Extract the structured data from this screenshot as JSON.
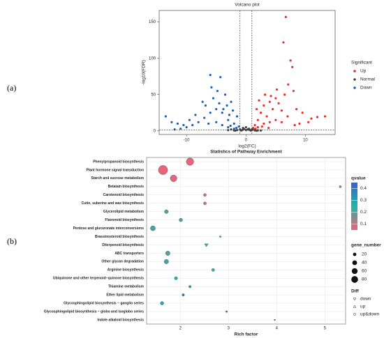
{
  "panel_labels": [
    "(a)",
    "(b)"
  ],
  "chart_data": [
    {
      "type": "scatter",
      "title": "Volcano plot",
      "x_label": "log2(FC)",
      "y_label": "-log10(FDR)",
      "xlim": [
        -14.6,
        15
      ],
      "ylim": [
        -5,
        166
      ],
      "xticks": [
        -10,
        0,
        10
      ],
      "yticks": [
        0,
        50,
        100,
        150
      ],
      "vlines": [
        -1,
        1
      ],
      "hline": 1.3,
      "legend_title": "Significant",
      "grid": false,
      "series": [
        {
          "name": "Up",
          "color": "#e8302a",
          "x": [
            6.7,
            6.3,
            7.5,
            7.8,
            7.1,
            8,
            12,
            10.5,
            9,
            8.2,
            5,
            4,
            3,
            2.5,
            2,
            1.5,
            1.2,
            3.5,
            4.5,
            5.5,
            6,
            7,
            2,
            3,
            4,
            5,
            6,
            1.8,
            2.2,
            3.2,
            4.2,
            5.2,
            6.5,
            11,
            13.3,
            9.5,
            8.5,
            1.4,
            2.7,
            3.8,
            1.1,
            1.6
          ],
          "values": [
            157,
            122,
            97,
            88,
            64,
            55,
            19,
            12,
            10,
            8,
            45,
            40,
            35,
            25,
            15,
            8,
            4,
            20,
            30,
            38,
            28,
            20,
            5,
            10,
            12,
            15,
            12,
            30,
            42,
            50,
            48,
            57,
            50,
            17,
            20,
            25,
            30,
            2,
            6,
            4,
            1.5,
            3
          ]
        },
        {
          "name": "Normal",
          "color": "#444444",
          "x": [
            -3,
            -2.5,
            -2,
            -1.5,
            -1,
            -0.5,
            0,
            0.5,
            1,
            1.5,
            2,
            2.5,
            0,
            -0.8,
            0.8,
            -0.3,
            0.3,
            -1.8,
            1.8,
            -0.6,
            0.6
          ],
          "values": [
            1,
            2,
            0.8,
            1,
            2,
            4,
            1,
            3,
            2,
            0.6,
            0.8,
            0.5,
            5,
            0.5,
            0.5,
            2.5,
            2,
            0.4,
            0.3,
            1.2,
            1.5
          ]
        },
        {
          "name": "Down",
          "color": "#1f5fb0",
          "x": [
            -6,
            -5.8,
            -4.3,
            -3.5,
            -2.5,
            -1.5,
            -1.2,
            -2,
            -3,
            -4,
            -5,
            -6,
            -7,
            -8,
            -9,
            -10,
            -11,
            -12,
            -7.3,
            -6.8,
            -5.5,
            -4.5,
            -3.8,
            -2.8,
            -2.2,
            -3.2,
            -4.8,
            -8.5,
            -9.5,
            -13.5,
            -12.5,
            -11.5,
            -10.5,
            -6.3,
            -5,
            -4,
            -3,
            -2,
            -1.6,
            -2.6
          ],
          "values": [
            77,
            60,
            74,
            50,
            40,
            20,
            6,
            10,
            15,
            25,
            30,
            25,
            18,
            12,
            8,
            5,
            3,
            2,
            40,
            35,
            45,
            38,
            30,
            22,
            28,
            35,
            55,
            22,
            15,
            20,
            12,
            10,
            8,
            10,
            12,
            8,
            5,
            3,
            4,
            7
          ]
        }
      ]
    },
    {
      "type": "bubble",
      "title": "Statistics of Pathway Enrichment",
      "x_label": "Rich factor",
      "xlim": [
        1.3,
        5.43
      ],
      "xticks": [
        2,
        3,
        4,
        5
      ],
      "grid": true,
      "categories": [
        "Phenylpropanoid biosynthesis",
        "Plant hormone signal transduction",
        "Starch and sucrose metabolism",
        "Betalain biosynthesis",
        "Carotenoid biosynthesis",
        "Cutin, suberine and wax biosynthesis",
        "Glycerolipid metabolism",
        "Flavonoid biosynthesis",
        "Pentose and glucuronate interconversions",
        "Brassinosteroid biosynthesis",
        "Diterpenoid biosynthesis",
        "ABC transporters",
        "Other glycan degradation",
        "Arginine biosynthesis",
        "Ubiquinone and other terpenoid−quinone biosynthesis",
        "Thiamine metabolism",
        "Ether lipid metabolism",
        "Glycosphingolipid biosynthesis − ganglio series",
        "Glycosphingolipid biosynthesis − globo and isoglobo series",
        "Indole alkaloid biosynthesis"
      ],
      "values": [
        2.2,
        1.64,
        1.86,
        5.32,
        2.51,
        2.51,
        1.71,
        2.01,
        1.43,
        2.83,
        2.54,
        1.74,
        1.71,
        2.68,
        1.91,
        2.2,
        2.06,
        1.62,
        2.96,
        3.96
      ],
      "qvalues": [
        0.06,
        0.06,
        0.07,
        0.1,
        0.1,
        0.1,
        0.2,
        0.2,
        0.21,
        0.2,
        0.22,
        0.2,
        0.21,
        0.22,
        0.25,
        0.3,
        0.38,
        0.27,
        0.42,
        0.42
      ],
      "gene_numbers": [
        55,
        85,
        45,
        5,
        8,
        8,
        15,
        12,
        25,
        3,
        10,
        20,
        20,
        8,
        10,
        6,
        6,
        12,
        3,
        2
      ],
      "diff": [
        "up&down",
        "up&down",
        "up&down",
        "up&down",
        "up&down",
        "up&down",
        "up&down",
        "up&down",
        "up&down",
        "up&down",
        "down",
        "up&down",
        "up&down",
        "up&down",
        "up&down",
        "up&down",
        "up&down",
        "up&down",
        "up&down",
        "up&down"
      ],
      "color_title": "qvalue",
      "color_lim": [
        0.05,
        0.45
      ],
      "color_ticks": [
        0.1,
        0.2,
        0.3,
        0.4
      ],
      "colors": [
        "#f0607a",
        "#1fb5a9",
        "#3a62c8"
      ],
      "size_title": "gene_number",
      "size_ticks": [
        20,
        40,
        60,
        80
      ],
      "diff_title": "Diff",
      "diff_levels": [
        "down",
        "up",
        "up&down"
      ]
    }
  ]
}
